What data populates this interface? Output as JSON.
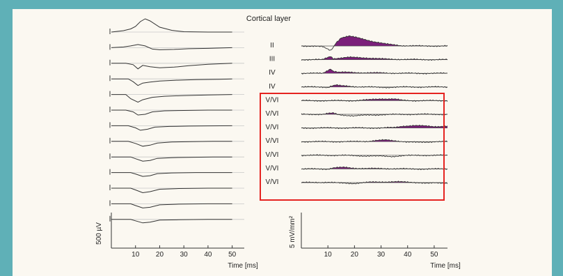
{
  "chart_data": [
    {
      "type": "line",
      "title": "",
      "xlabel": "Time [ms]",
      "ylabel": "500 µV",
      "xlim": [
        0,
        55
      ],
      "x_ticks": [
        10,
        20,
        30,
        40,
        50
      ],
      "series": [
        {
          "values": [
            [
              0,
              0
            ],
            [
              5,
              -0.4
            ],
            [
              8,
              -0.9
            ],
            [
              10,
              -1.6
            ],
            [
              12,
              -3.0
            ],
            [
              14,
              -3.8
            ],
            [
              16,
              -3.2
            ],
            [
              20,
              -1.4
            ],
            [
              25,
              -0.5
            ],
            [
              30,
              -0.1
            ],
            [
              40,
              0
            ],
            [
              50,
              0
            ]
          ]
        },
        {
          "values": [
            [
              0,
              0
            ],
            [
              5,
              -0.2
            ],
            [
              8,
              -0.5
            ],
            [
              11,
              -0.9
            ],
            [
              14,
              -0.5
            ],
            [
              17,
              0.4
            ],
            [
              20,
              0.6
            ],
            [
              26,
              0.5
            ],
            [
              32,
              0.3
            ],
            [
              40,
              0.2
            ],
            [
              50,
              0
            ]
          ]
        },
        {
          "values": [
            [
              0,
              0
            ],
            [
              6,
              0
            ],
            [
              9,
              0.4
            ],
            [
              11,
              1.6
            ],
            [
              13,
              0.6
            ],
            [
              16,
              1.0
            ],
            [
              20,
              1.3
            ],
            [
              26,
              1.1
            ],
            [
              32,
              0.7
            ],
            [
              40,
              0.3
            ],
            [
              50,
              0
            ]
          ]
        },
        {
          "values": [
            [
              0,
              0
            ],
            [
              7,
              0
            ],
            [
              9,
              0.8
            ],
            [
              11,
              1.9
            ],
            [
              13,
              1.2
            ],
            [
              16,
              0.9
            ],
            [
              20,
              0.6
            ],
            [
              26,
              0.4
            ],
            [
              35,
              0.2
            ],
            [
              45,
              0.1
            ],
            [
              50,
              0
            ]
          ]
        },
        {
          "values": [
            [
              0,
              0
            ],
            [
              6,
              0
            ],
            [
              8,
              1.2
            ],
            [
              11,
              2.2
            ],
            [
              13,
              1.5
            ],
            [
              17,
              0.8
            ],
            [
              22,
              0.5
            ],
            [
              30,
              0.3
            ],
            [
              40,
              0.15
            ],
            [
              50,
              0
            ]
          ]
        },
        {
          "values": [
            [
              0,
              0
            ],
            [
              6,
              0
            ],
            [
              9,
              0.5
            ],
            [
              11,
              1.4
            ],
            [
              14,
              1.2
            ],
            [
              17,
              0.5
            ],
            [
              22,
              0.2
            ],
            [
              30,
              0.1
            ],
            [
              40,
              0
            ],
            [
              50,
              0
            ]
          ]
        },
        {
          "values": [
            [
              0,
              0
            ],
            [
              7,
              0
            ],
            [
              10,
              0.6
            ],
            [
              12,
              1.3
            ],
            [
              15,
              1.0
            ],
            [
              18,
              0.4
            ],
            [
              24,
              0.2
            ],
            [
              32,
              0.1
            ],
            [
              40,
              0.05
            ],
            [
              50,
              0
            ]
          ]
        },
        {
          "values": [
            [
              0,
              0
            ],
            [
              7,
              0
            ],
            [
              10,
              0.6
            ],
            [
              13,
              1.4
            ],
            [
              16,
              1.1
            ],
            [
              19,
              0.5
            ],
            [
              25,
              0.2
            ],
            [
              33,
              0.1
            ],
            [
              42,
              0
            ],
            [
              50,
              0
            ]
          ]
        },
        {
          "values": [
            [
              0,
              0
            ],
            [
              8,
              0
            ],
            [
              10,
              0.5
            ],
            [
              13,
              1.2
            ],
            [
              16,
              1.0
            ],
            [
              19,
              0.4
            ],
            [
              25,
              0.2
            ],
            [
              32,
              0.1
            ],
            [
              42,
              0
            ],
            [
              50,
              0
            ]
          ]
        },
        {
          "values": [
            [
              0,
              0
            ],
            [
              8,
              0
            ],
            [
              10,
              0.4
            ],
            [
              13,
              1.1
            ],
            [
              16,
              0.9
            ],
            [
              19,
              0.3
            ],
            [
              25,
              0.1
            ],
            [
              35,
              0
            ],
            [
              50,
              0
            ]
          ]
        },
        {
          "values": [
            [
              0,
              0
            ],
            [
              8,
              0
            ],
            [
              10,
              0.5
            ],
            [
              13,
              1.3
            ],
            [
              16,
              1.0
            ],
            [
              20,
              0.3
            ],
            [
              28,
              0.1
            ],
            [
              40,
              0
            ],
            [
              50,
              0
            ]
          ]
        },
        {
          "values": [
            [
              0,
              0
            ],
            [
              8,
              0
            ],
            [
              10,
              0.5
            ],
            [
              13,
              1.2
            ],
            [
              16,
              1.0
            ],
            [
              20,
              0.3
            ],
            [
              28,
              0.1
            ],
            [
              40,
              0
            ],
            [
              50,
              0
            ]
          ]
        },
        {
          "values": [
            [
              0,
              0
            ],
            [
              8,
              0
            ],
            [
              10,
              0.4
            ],
            [
              13,
              1.0
            ],
            [
              16,
              0.8
            ],
            [
              20,
              0.2
            ],
            [
              28,
              0.1
            ],
            [
              40,
              0
            ],
            [
              50,
              0
            ]
          ]
        }
      ]
    },
    {
      "type": "area",
      "title": "Cortical layer",
      "xlabel": "Time [ms]",
      "ylabel": "5 mV/mm²",
      "xlim": [
        0,
        55
      ],
      "x_ticks": [
        10,
        20,
        30,
        40,
        50
      ],
      "fill_color": "#7b1f7a",
      "series": [
        {
          "name": "II",
          "values": [
            [
              0,
              0
            ],
            [
              5,
              0
            ],
            [
              8,
              0.2
            ],
            [
              10,
              0.9
            ],
            [
              11,
              1.2
            ],
            [
              12,
              0.4
            ],
            [
              13,
              -0.8
            ],
            [
              15,
              -2.2
            ],
            [
              18,
              -2.6
            ],
            [
              22,
              -2.0
            ],
            [
              27,
              -1.2
            ],
            [
              32,
              -0.5
            ],
            [
              38,
              -0.1
            ],
            [
              45,
              0
            ],
            [
              50,
              0
            ]
          ]
        },
        {
          "name": "III",
          "values": [
            [
              0,
              0
            ],
            [
              8,
              0
            ],
            [
              10,
              -0.6
            ],
            [
              11,
              -0.9
            ],
            [
              12,
              -0.3
            ],
            [
              14,
              -0.4
            ],
            [
              18,
              -0.6
            ],
            [
              24,
              -0.5
            ],
            [
              30,
              -0.2
            ],
            [
              40,
              -0.05
            ],
            [
              50,
              0
            ]
          ]
        },
        {
          "name": "IV",
          "values": [
            [
              0,
              0
            ],
            [
              8,
              0
            ],
            [
              10,
              -0.8
            ],
            [
              11,
              -1.2
            ],
            [
              12,
              -0.6
            ],
            [
              14,
              -0.3
            ],
            [
              20,
              -0.2
            ],
            [
              30,
              -0.1
            ],
            [
              40,
              0
            ],
            [
              50,
              0
            ]
          ]
        },
        {
          "name": "IV",
          "values": [
            [
              0,
              0
            ],
            [
              8,
              0
            ],
            [
              10,
              0.1
            ],
            [
              11,
              -0.2
            ],
            [
              13,
              -0.5
            ],
            [
              15,
              -0.3
            ],
            [
              20,
              -0.1
            ],
            [
              30,
              0.1
            ],
            [
              40,
              0
            ],
            [
              50,
              0
            ]
          ]
        },
        {
          "name": "V/VI",
          "values": [
            [
              0,
              0
            ],
            [
              10,
              0
            ],
            [
              20,
              0
            ],
            [
              25,
              -0.2
            ],
            [
              30,
              -0.5
            ],
            [
              35,
              -0.4
            ],
            [
              38,
              -0.1
            ],
            [
              42,
              0
            ],
            [
              50,
              0
            ]
          ]
        },
        {
          "name": "V/VI",
          "values": [
            [
              0,
              0
            ],
            [
              8,
              0
            ],
            [
              10,
              -0.2
            ],
            [
              12,
              -0.3
            ],
            [
              14,
              0.1
            ],
            [
              20,
              0.4
            ],
            [
              25,
              0.2
            ],
            [
              30,
              0.1
            ],
            [
              40,
              0
            ],
            [
              50,
              0
            ]
          ]
        },
        {
          "name": "V/VI",
          "values": [
            [
              0,
              0
            ],
            [
              20,
              0
            ],
            [
              30,
              0
            ],
            [
              35,
              -0.1
            ],
            [
              38,
              -0.5
            ],
            [
              42,
              -0.6
            ],
            [
              48,
              -0.5
            ],
            [
              50,
              -0.4
            ]
          ]
        },
        {
          "name": "V/VI",
          "values": [
            [
              0,
              0
            ],
            [
              20,
              0
            ],
            [
              25,
              -0.1
            ],
            [
              28,
              -0.3
            ],
            [
              32,
              -0.4
            ],
            [
              36,
              -0.2
            ],
            [
              40,
              0.1
            ],
            [
              44,
              0.2
            ],
            [
              50,
              0
            ]
          ]
        },
        {
          "name": "V/VI",
          "values": [
            [
              0,
              0
            ],
            [
              15,
              0
            ],
            [
              20,
              0.1
            ],
            [
              28,
              0.2
            ],
            [
              34,
              0.3
            ],
            [
              38,
              0.1
            ],
            [
              44,
              0
            ],
            [
              50,
              0
            ]
          ]
        },
        {
          "name": "V/VI",
          "values": [
            [
              0,
              0
            ],
            [
              10,
              0
            ],
            [
              12,
              -0.3
            ],
            [
              16,
              -0.4
            ],
            [
              20,
              -0.2
            ],
            [
              26,
              -0.1
            ],
            [
              32,
              -0.1
            ],
            [
              40,
              0
            ],
            [
              50,
              0
            ]
          ]
        },
        {
          "name": "V/VI",
          "values": [
            [
              0,
              0
            ],
            [
              10,
              -0.1
            ],
            [
              14,
              0.1
            ],
            [
              20,
              0.2
            ],
            [
              26,
              -0.1
            ],
            [
              30,
              -0.2
            ],
            [
              36,
              -0.2
            ],
            [
              42,
              -0.1
            ],
            [
              48,
              0.2
            ],
            [
              50,
              0.1
            ]
          ]
        }
      ],
      "highlight_box_color": "#e52320",
      "highlight_rows": [
        4,
        10
      ]
    }
  ]
}
